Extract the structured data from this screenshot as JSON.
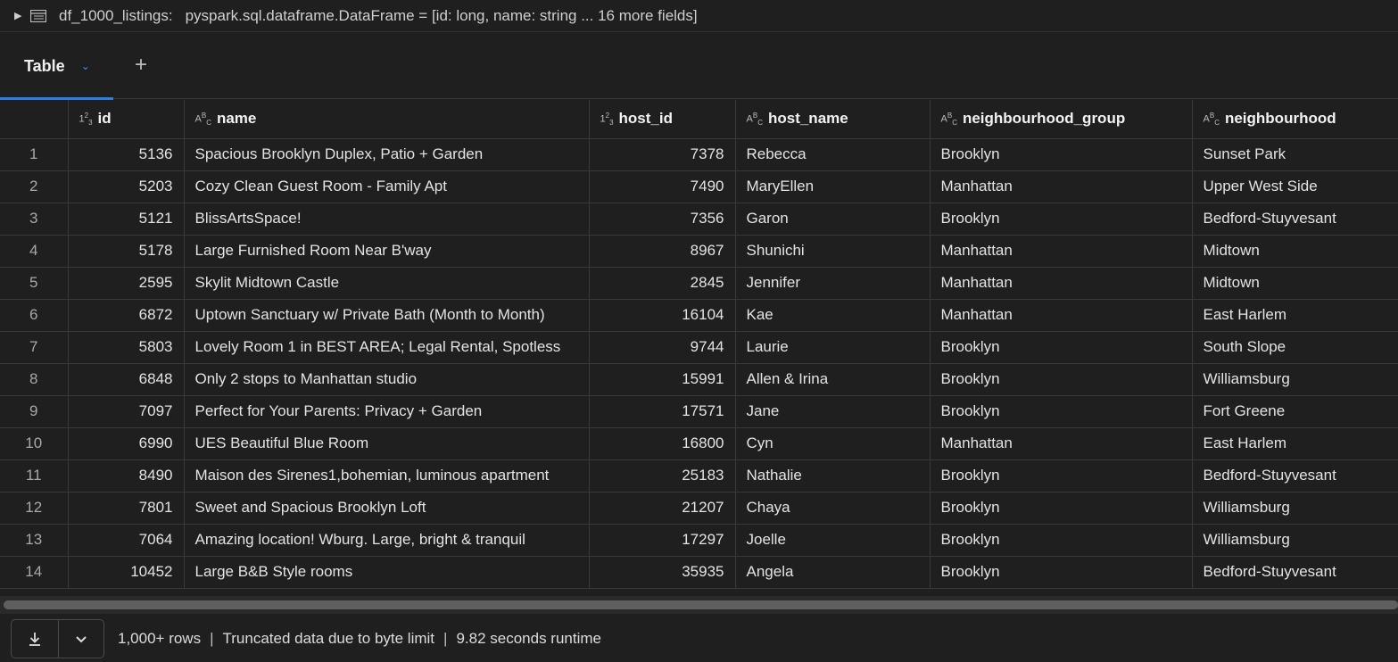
{
  "header": {
    "df_name": "df_1000_listings:",
    "df_type": "pyspark.sql.dataframe.DataFrame = [id: long, name: string ... 16 more fields]"
  },
  "tabs": {
    "active_label": "Table"
  },
  "columns": [
    {
      "name": "id",
      "type": "number"
    },
    {
      "name": "name",
      "type": "string"
    },
    {
      "name": "host_id",
      "type": "number"
    },
    {
      "name": "host_name",
      "type": "string"
    },
    {
      "name": "neighbourhood_group",
      "type": "string"
    },
    {
      "name": "neighbourhood",
      "type": "string"
    }
  ],
  "rows": [
    {
      "n": "1",
      "id": "5136",
      "name": "Spacious Brooklyn Duplex, Patio + Garden",
      "host_id": "7378",
      "host_name": "Rebecca",
      "group": "Brooklyn",
      "hood": "Sunset Park"
    },
    {
      "n": "2",
      "id": "5203",
      "name": "Cozy Clean Guest Room - Family Apt",
      "host_id": "7490",
      "host_name": "MaryEllen",
      "group": "Manhattan",
      "hood": "Upper West Side"
    },
    {
      "n": "3",
      "id": "5121",
      "name": "BlissArtsSpace!",
      "host_id": "7356",
      "host_name": "Garon",
      "group": "Brooklyn",
      "hood": "Bedford-Stuyvesant"
    },
    {
      "n": "4",
      "id": "5178",
      "name": "Large Furnished Room Near B'way",
      "host_id": "8967",
      "host_name": "Shunichi",
      "group": "Manhattan",
      "hood": "Midtown"
    },
    {
      "n": "5",
      "id": "2595",
      "name": "Skylit Midtown Castle",
      "host_id": "2845",
      "host_name": "Jennifer",
      "group": "Manhattan",
      "hood": "Midtown"
    },
    {
      "n": "6",
      "id": "6872",
      "name": "Uptown Sanctuary w/ Private Bath (Month to Month)",
      "host_id": "16104",
      "host_name": "Kae",
      "group": "Manhattan",
      "hood": "East Harlem"
    },
    {
      "n": "7",
      "id": "5803",
      "name": "Lovely Room 1 in BEST AREA; Legal Rental, Spotless",
      "host_id": "9744",
      "host_name": "Laurie",
      "group": "Brooklyn",
      "hood": "South Slope"
    },
    {
      "n": "8",
      "id": "6848",
      "name": "Only 2 stops to Manhattan studio",
      "host_id": "15991",
      "host_name": "Allen & Irina",
      "group": "Brooklyn",
      "hood": "Williamsburg"
    },
    {
      "n": "9",
      "id": "7097",
      "name": "Perfect for Your Parents:  Privacy + Garden",
      "host_id": "17571",
      "host_name": "Jane",
      "group": "Brooklyn",
      "hood": "Fort Greene"
    },
    {
      "n": "10",
      "id": "6990",
      "name": "UES Beautiful Blue Room",
      "host_id": "16800",
      "host_name": "Cyn",
      "group": "Manhattan",
      "hood": "East Harlem"
    },
    {
      "n": "11",
      "id": "8490",
      "name": "Maison des Sirenes1,bohemian, luminous apartment",
      "host_id": "25183",
      "host_name": "Nathalie",
      "group": "Brooklyn",
      "hood": "Bedford-Stuyvesant"
    },
    {
      "n": "12",
      "id": "7801",
      "name": "Sweet and Spacious Brooklyn Loft",
      "host_id": "21207",
      "host_name": "Chaya",
      "group": "Brooklyn",
      "hood": "Williamsburg"
    },
    {
      "n": "13",
      "id": "7064",
      "name": "Amazing location! Wburg. Large, bright & tranquil",
      "host_id": "17297",
      "host_name": "Joelle",
      "group": "Brooklyn",
      "hood": "Williamsburg"
    },
    {
      "n": "14",
      "id": "10452",
      "name": "Large B&B Style rooms",
      "host_id": "35935",
      "host_name": "Angela",
      "group": "Brooklyn",
      "hood": "Bedford-Stuyvesant"
    }
  ],
  "footer": {
    "rows": "1,000+ rows",
    "truncated": "Truncated data due to byte limit",
    "runtime": "9.82 seconds runtime",
    "separator": "|"
  },
  "colors": {
    "accent": "#2f7de1",
    "background": "#1f1f1f",
    "grid_line": "#3a3a3a"
  },
  "icons": {
    "expand": "caret-right-icon",
    "dataframe": "table-icon",
    "tab_menu": "chevron-down-icon",
    "add_tab": "plus-icon",
    "download": "download-icon",
    "download_menu": "chevron-down-icon",
    "number_type": "number-type-icon",
    "string_type": "string-type-icon"
  }
}
